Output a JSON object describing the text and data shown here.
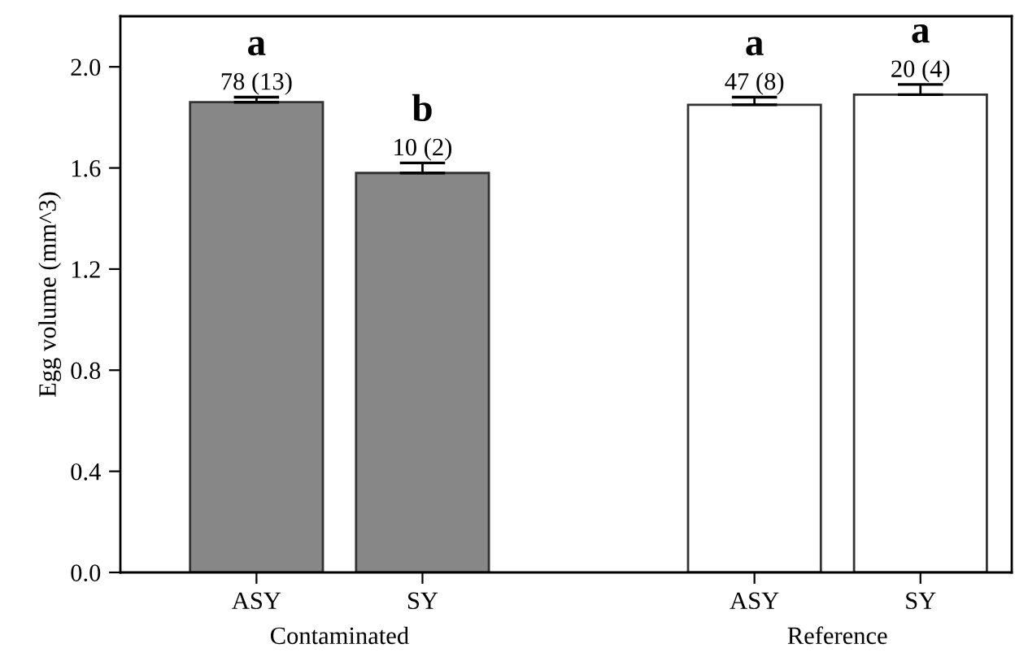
{
  "chart_data": {
    "type": "bar",
    "ylabel": "Egg volume (mm^3)",
    "categories": [
      "ASY",
      "SY",
      null,
      "ASY",
      "SY"
    ],
    "values": [
      1.86,
      1.58,
      null,
      1.85,
      1.89
    ],
    "errors": [
      0.02,
      0.04,
      null,
      0.03,
      0.04
    ],
    "colors": [
      "#878787",
      "#878787",
      null,
      "#ffffff",
      "#ffffff"
    ],
    "annotations": [
      "a",
      "b",
      "a",
      "a",
      "78 (13)",
      "10 (2)",
      "47 (8)",
      "20 (4)",
      "Contaminated",
      "Reference"
    ],
    "ylim": [
      0,
      2.2
    ],
    "yticks": [
      {
        "value": 0,
        "label": "0.0"
      },
      {
        "value": 0.4,
        "label": "0.4"
      },
      {
        "value": 0.8,
        "label": "0.8"
      },
      {
        "value": 1.2,
        "label": "1.2"
      },
      {
        "value": 1.6,
        "label": "1.6"
      },
      {
        "value": 2.0,
        "label": "2.0"
      }
    ],
    "grid": false
  }
}
